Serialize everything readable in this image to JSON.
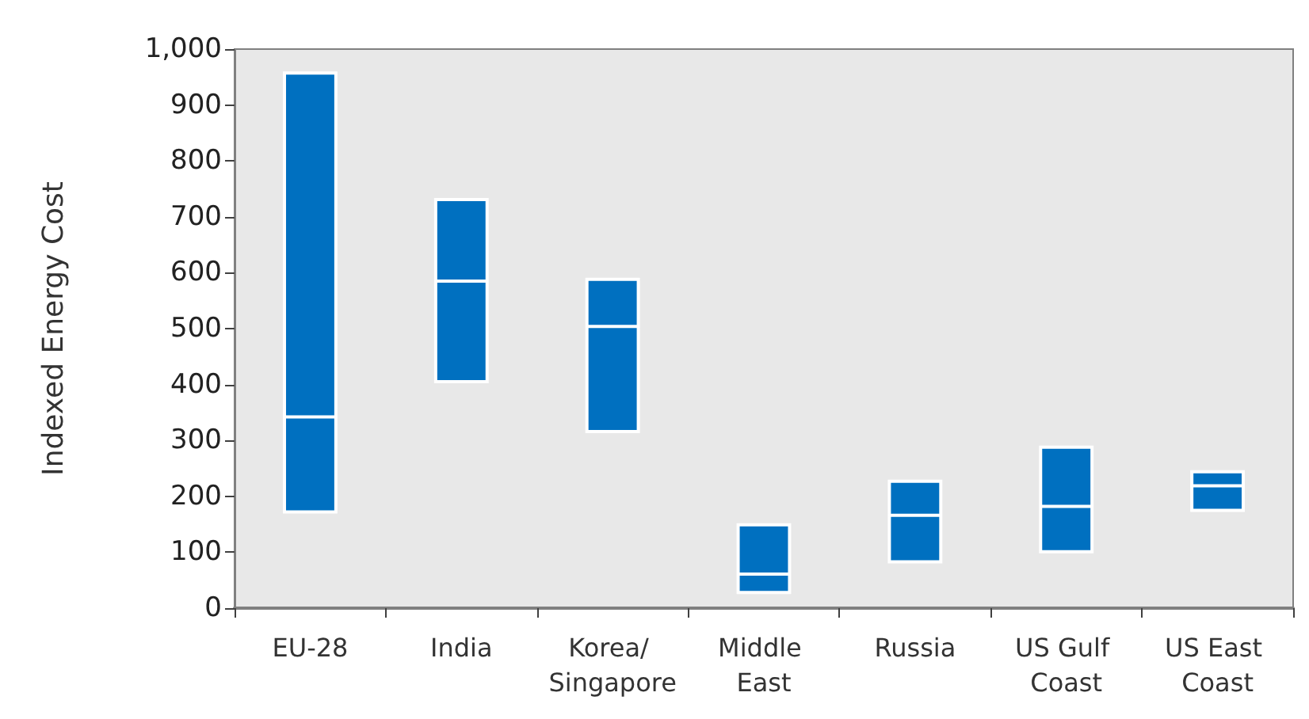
{
  "chart_data": {
    "type": "box",
    "ylabel": "Indexed Energy Cost",
    "categories": [
      "EU-28",
      "India",
      "Korea/ Singapore",
      "Middle East",
      "Russia",
      "US Gulf Coast",
      "US East Coast"
    ],
    "series": [
      {
        "color": "#0070c0",
        "boxes": [
          {
            "low": 172,
            "q1": 172,
            "median": 342,
            "q3": 957,
            "high": 957
          },
          {
            "low": 405,
            "q1": 405,
            "median": 585,
            "q3": 731,
            "high": 731
          },
          {
            "low": 316,
            "q1": 316,
            "median": 504,
            "q3": 588,
            "high": 588
          },
          {
            "low": 28,
            "q1": 28,
            "median": 61,
            "q3": 149,
            "high": 149
          },
          {
            "low": 83,
            "q1": 83,
            "median": 166,
            "q3": 227,
            "high": 227
          },
          {
            "low": 101,
            "q1": 101,
            "median": 182,
            "q3": 288,
            "high": 288
          },
          {
            "low": 175,
            "q1": 175,
            "median": 219,
            "q3": 244,
            "high": 244
          }
        ]
      }
    ],
    "ylim": [
      0,
      1000
    ],
    "yticks": [
      0,
      100,
      200,
      300,
      400,
      500,
      600,
      700,
      800,
      900,
      {
        "value": 1000,
        "label": "1,000"
      }
    ],
    "grid": false
  }
}
